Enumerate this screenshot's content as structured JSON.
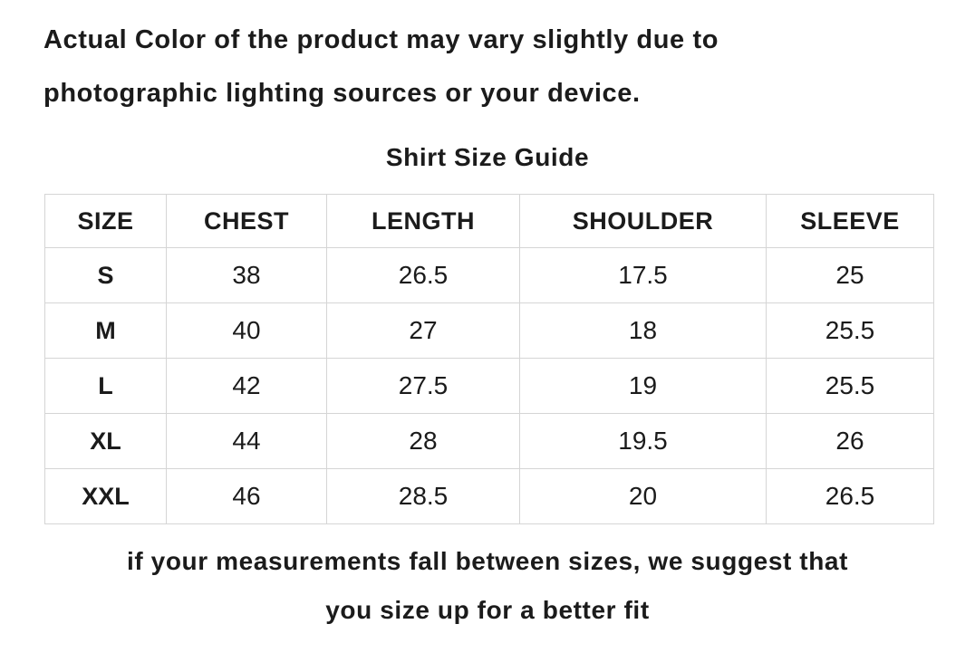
{
  "disclaimer": {
    "line1": "Actual Color of the product may vary slightly due to",
    "line2": "photographic lighting sources or your device."
  },
  "title": "Shirt Size Guide",
  "table": {
    "headers": [
      "SIZE",
      "CHEST",
      "LENGTH",
      "SHOULDER",
      "SLEEVE"
    ],
    "rows": [
      [
        "S",
        "38",
        "26.5",
        "17.5",
        "25"
      ],
      [
        "M",
        "40",
        "27",
        "18",
        "25.5"
      ],
      [
        "L",
        "42",
        "27.5",
        "19",
        "25.5"
      ],
      [
        "XL",
        "44",
        "28",
        "19.5",
        "26"
      ],
      [
        "XXL",
        "46",
        "28.5",
        "20",
        "26.5"
      ]
    ]
  },
  "footnote": {
    "line1": "if your measurements fall between sizes, we suggest that",
    "line2": "you size up for a better fit"
  },
  "colors": {
    "text": "#1b1b1b",
    "border": "#d5d5d5",
    "background": "#ffffff"
  }
}
